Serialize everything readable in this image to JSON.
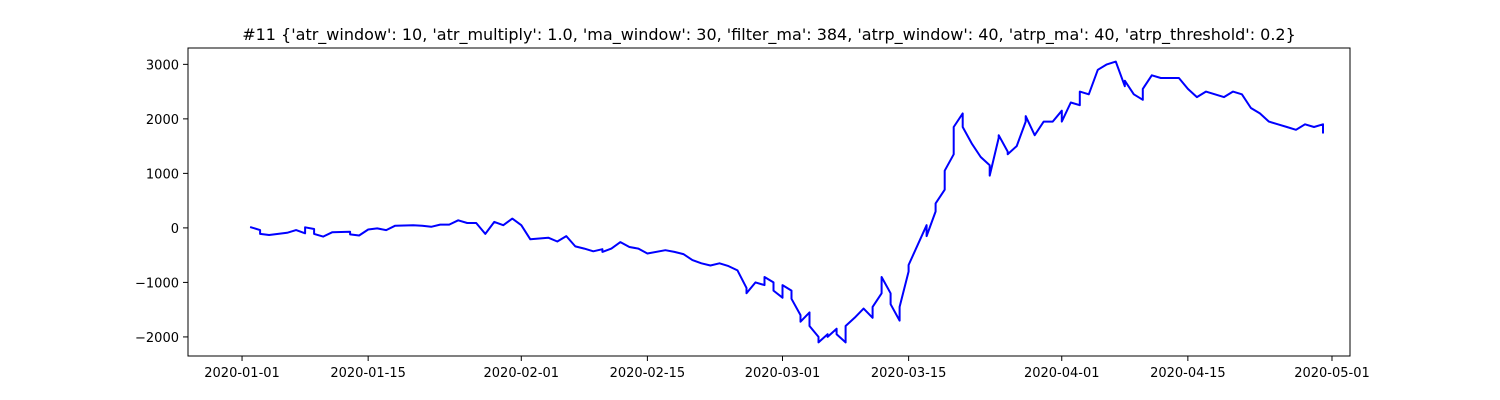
{
  "chart_data": {
    "type": "line",
    "title": "#11 {'atr_window': 10, 'atr_multiply': 1.0, 'ma_window': 30, 'filter_ma': 384, 'atrp_window': 40, 'atrp_ma': 40, 'atrp_threshold': 0.2}",
    "xlabel": "",
    "ylabel": "",
    "xlim": [
      "2019-12-26",
      "2020-05-03"
    ],
    "ylim": [
      -2350,
      3300
    ],
    "grid": false,
    "line_color": "#0000ff",
    "x_ticks": [
      {
        "value": "2020-01-01",
        "label": "2020-01-01"
      },
      {
        "value": "2020-01-15",
        "label": "2020-01-15"
      },
      {
        "value": "2020-02-01",
        "label": "2020-02-01"
      },
      {
        "value": "2020-02-15",
        "label": "2020-02-15"
      },
      {
        "value": "2020-03-01",
        "label": "2020-03-01"
      },
      {
        "value": "2020-03-15",
        "label": "2020-03-15"
      },
      {
        "value": "2020-04-01",
        "label": "2020-04-01"
      },
      {
        "value": "2020-04-15",
        "label": "2020-04-15"
      },
      {
        "value": "2020-05-01",
        "label": "2020-05-01"
      }
    ],
    "y_ticks": [
      {
        "value": 3000,
        "label": "3000"
      },
      {
        "value": 2000,
        "label": "2000"
      },
      {
        "value": 1000,
        "label": "1000"
      },
      {
        "value": 0,
        "label": "0"
      },
      {
        "value": -1000,
        "label": "−1000"
      },
      {
        "value": -2000,
        "label": "−2000"
      }
    ],
    "series": [
      {
        "points": [
          [
            "2020-01-02",
            10
          ],
          [
            "2020-01-03",
            -40
          ],
          [
            "2020-01-03",
            -110
          ],
          [
            "2020-01-04",
            -130
          ],
          [
            "2020-01-06",
            -90
          ],
          [
            "2020-01-07",
            -40
          ],
          [
            "2020-01-08",
            -100
          ],
          [
            "2020-01-08",
            10
          ],
          [
            "2020-01-09",
            -20
          ],
          [
            "2020-01-09",
            -110
          ],
          [
            "2020-01-10",
            -160
          ],
          [
            "2020-01-11",
            -80
          ],
          [
            "2020-01-13",
            -70
          ],
          [
            "2020-01-13",
            -120
          ],
          [
            "2020-01-14",
            -140
          ],
          [
            "2020-01-15",
            -30
          ],
          [
            "2020-01-16",
            -10
          ],
          [
            "2020-01-17",
            -40
          ],
          [
            "2020-01-18",
            40
          ],
          [
            "2020-01-20",
            50
          ],
          [
            "2020-01-21",
            40
          ],
          [
            "2020-01-22",
            20
          ],
          [
            "2020-01-23",
            60
          ],
          [
            "2020-01-24",
            60
          ],
          [
            "2020-01-25",
            140
          ],
          [
            "2020-01-26",
            90
          ],
          [
            "2020-01-27",
            90
          ],
          [
            "2020-01-28",
            -110
          ],
          [
            "2020-01-29",
            110
          ],
          [
            "2020-01-30",
            50
          ],
          [
            "2020-01-31",
            170
          ],
          [
            "2020-02-01",
            50
          ],
          [
            "2020-02-02",
            -210
          ],
          [
            "2020-02-04",
            -180
          ],
          [
            "2020-02-05",
            -250
          ],
          [
            "2020-02-06",
            -150
          ],
          [
            "2020-02-07",
            -340
          ],
          [
            "2020-02-08",
            -380
          ],
          [
            "2020-02-09",
            -430
          ],
          [
            "2020-02-10",
            -390
          ],
          [
            "2020-02-10",
            -440
          ],
          [
            "2020-02-11",
            -380
          ],
          [
            "2020-02-12",
            -260
          ],
          [
            "2020-02-13",
            -350
          ],
          [
            "2020-02-14",
            -380
          ],
          [
            "2020-02-15",
            -470
          ],
          [
            "2020-02-17",
            -410
          ],
          [
            "2020-02-18",
            -440
          ],
          [
            "2020-02-19",
            -480
          ],
          [
            "2020-02-20",
            -590
          ],
          [
            "2020-02-21",
            -650
          ],
          [
            "2020-02-22",
            -690
          ],
          [
            "2020-02-23",
            -650
          ],
          [
            "2020-02-24",
            -700
          ],
          [
            "2020-02-25",
            -780
          ],
          [
            "2020-02-26",
            -1100
          ],
          [
            "2020-02-26",
            -1200
          ],
          [
            "2020-02-27",
            -1000
          ],
          [
            "2020-02-28",
            -1050
          ],
          [
            "2020-02-28",
            -900
          ],
          [
            "2020-02-29",
            -1000
          ],
          [
            "2020-02-29",
            -1150
          ],
          [
            "2020-03-01",
            -1280
          ],
          [
            "2020-03-01",
            -1050
          ],
          [
            "2020-03-02",
            -1150
          ],
          [
            "2020-03-02",
            -1300
          ],
          [
            "2020-03-03",
            -1600
          ],
          [
            "2020-03-03",
            -1720
          ],
          [
            "2020-03-04",
            -1550
          ],
          [
            "2020-03-04",
            -1800
          ],
          [
            "2020-03-05",
            -2000
          ],
          [
            "2020-03-05",
            -2100
          ],
          [
            "2020-03-06",
            -1950
          ],
          [
            "2020-03-06",
            -2000
          ],
          [
            "2020-03-07",
            -1850
          ],
          [
            "2020-03-07",
            -1950
          ],
          [
            "2020-03-08",
            -2100
          ],
          [
            "2020-03-08",
            -1800
          ],
          [
            "2020-03-09",
            -1650
          ],
          [
            "2020-03-10",
            -1480
          ],
          [
            "2020-03-11",
            -1650
          ],
          [
            "2020-03-11",
            -1450
          ],
          [
            "2020-03-12",
            -1200
          ],
          [
            "2020-03-12",
            -1000
          ],
          [
            "2020-03-12",
            -900
          ],
          [
            "2020-03-13",
            -1200
          ],
          [
            "2020-03-13",
            -1400
          ],
          [
            "2020-03-14",
            -1700
          ],
          [
            "2020-03-14",
            -1550
          ],
          [
            "2020-03-14",
            -1450
          ],
          [
            "2020-03-15",
            -800
          ],
          [
            "2020-03-15",
            -680
          ],
          [
            "2020-03-17",
            50
          ],
          [
            "2020-03-17",
            -150
          ],
          [
            "2020-03-18",
            300
          ],
          [
            "2020-03-18",
            450
          ],
          [
            "2020-03-19",
            700
          ],
          [
            "2020-03-19",
            1050
          ],
          [
            "2020-03-20",
            1350
          ],
          [
            "2020-03-20",
            1850
          ],
          [
            "2020-03-21",
            2100
          ],
          [
            "2020-03-21",
            1850
          ],
          [
            "2020-03-22",
            1550
          ],
          [
            "2020-03-23",
            1300
          ],
          [
            "2020-03-24",
            1150
          ],
          [
            "2020-03-24",
            960
          ],
          [
            "2020-03-25",
            1650
          ],
          [
            "2020-03-25",
            1700
          ],
          [
            "2020-03-26",
            1400
          ],
          [
            "2020-03-26",
            1350
          ],
          [
            "2020-03-27",
            1500
          ],
          [
            "2020-03-28",
            1950
          ],
          [
            "2020-03-28",
            2050
          ],
          [
            "2020-03-29",
            1700
          ],
          [
            "2020-03-30",
            1950
          ],
          [
            "2020-03-31",
            1950
          ],
          [
            "2020-04-01",
            2150
          ],
          [
            "2020-04-01",
            1950
          ],
          [
            "2020-04-02",
            2300
          ],
          [
            "2020-04-03",
            2250
          ],
          [
            "2020-04-03",
            2500
          ],
          [
            "2020-04-04",
            2450
          ],
          [
            "2020-04-05",
            2900
          ],
          [
            "2020-04-06",
            3000
          ],
          [
            "2020-04-07",
            3050
          ],
          [
            "2020-04-08",
            2600
          ],
          [
            "2020-04-08",
            2700
          ],
          [
            "2020-04-09",
            2450
          ],
          [
            "2020-04-10",
            2350
          ],
          [
            "2020-04-10",
            2550
          ],
          [
            "2020-04-11",
            2800
          ],
          [
            "2020-04-12",
            2750
          ],
          [
            "2020-04-14",
            2750
          ],
          [
            "2020-04-15",
            2550
          ],
          [
            "2020-04-16",
            2400
          ],
          [
            "2020-04-17",
            2500
          ],
          [
            "2020-04-18",
            2450
          ],
          [
            "2020-04-19",
            2400
          ],
          [
            "2020-04-20",
            2500
          ],
          [
            "2020-04-21",
            2450
          ],
          [
            "2020-04-22",
            2200
          ],
          [
            "2020-04-23",
            2100
          ],
          [
            "2020-04-24",
            1950
          ],
          [
            "2020-04-25",
            1900
          ],
          [
            "2020-04-26",
            1850
          ],
          [
            "2020-04-27",
            1800
          ],
          [
            "2020-04-28",
            1900
          ],
          [
            "2020-04-29",
            1850
          ],
          [
            "2020-04-30",
            1900
          ],
          [
            "2020-04-30",
            1750
          ]
        ]
      }
    ]
  }
}
